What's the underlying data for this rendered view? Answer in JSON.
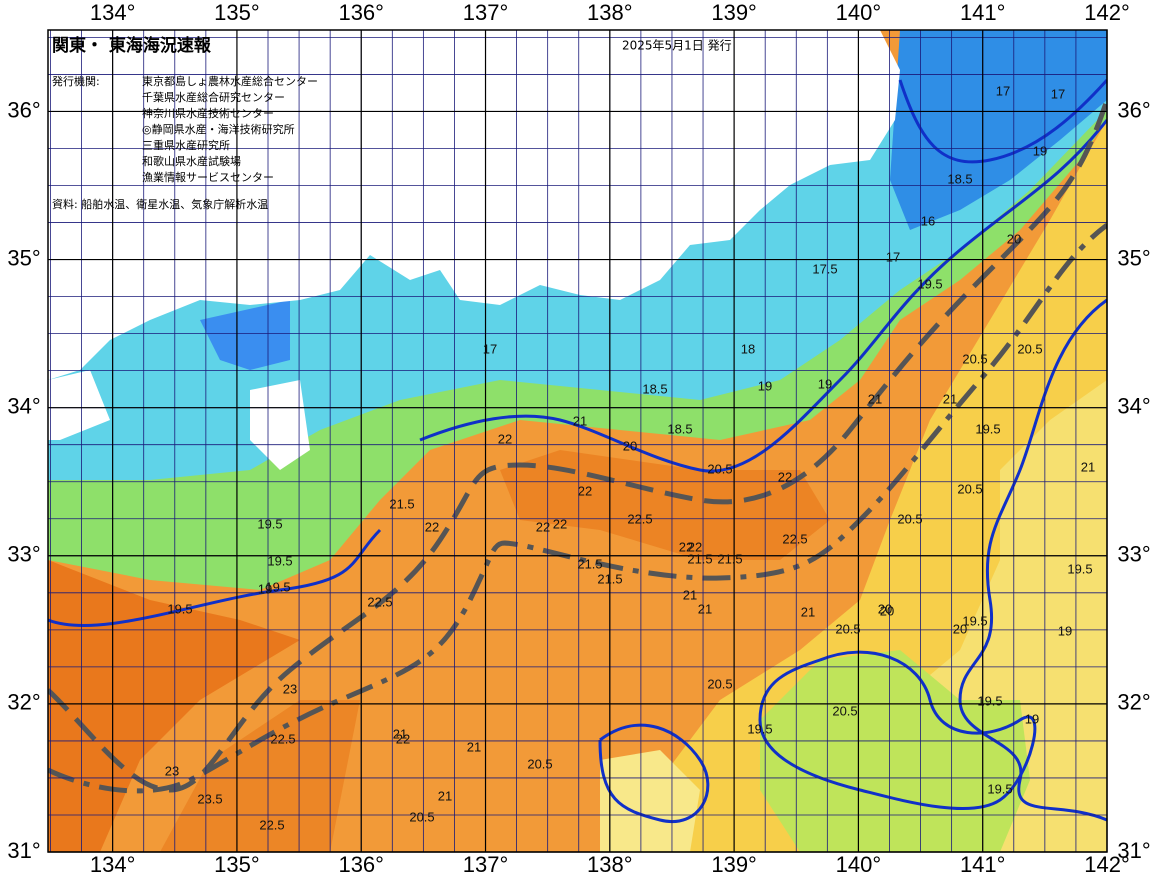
{
  "map": {
    "title": "関東・ 東海海況速報",
    "issued": "2025年5月1日 発行",
    "agencies_label": "発行機関:",
    "agencies": [
      "東京都島しょ農林水産総合センター",
      "千葉県水産総合研究センター",
      "神奈川県水産技術センター",
      "◎静岡県水産・海洋技術研究所",
      "三重県水産研究所",
      "和歌山県水産試験場",
      "漁業情報サービスセンター"
    ],
    "source": "資料: 船舶水温、衛星水温、気象庁解析水温",
    "lonlim": [
      133.48,
      142
    ],
    "latlim": [
      31,
      36.55
    ],
    "lon_ticks": [
      {
        "value": 134,
        "label": "134°"
      },
      {
        "value": 135,
        "label": "135°"
      },
      {
        "value": 136,
        "label": "136°"
      },
      {
        "value": 137,
        "label": "137°"
      },
      {
        "value": 138,
        "label": "138°"
      },
      {
        "value": 139,
        "label": "139°"
      },
      {
        "value": 140,
        "label": "140°"
      },
      {
        "value": 141,
        "label": "141°"
      },
      {
        "value": 142,
        "label": "142°"
      }
    ],
    "lat_ticks": [
      {
        "value": 31,
        "label": "31°"
      },
      {
        "value": 32,
        "label": "32°"
      },
      {
        "value": 33,
        "label": "33°"
      },
      {
        "value": 34,
        "label": "34°"
      },
      {
        "value": 35,
        "label": "35°"
      },
      {
        "value": 36,
        "label": "36°"
      }
    ],
    "contour_labels": [
      "17",
      "17",
      "19",
      "18.5",
      "16",
      "17",
      "19.5",
      "20",
      "17",
      "17.5",
      "18",
      "19",
      "18.5",
      "18.5",
      "19",
      "20.5",
      "21",
      "20",
      "21",
      "22",
      "22",
      "22",
      "22",
      "22.5",
      "22",
      "21.5",
      "21.5",
      "21",
      "21",
      "21",
      "21.5",
      "20.5",
      "21",
      "20.5",
      "19.5",
      "20.5",
      "19.5",
      "19.5",
      "19.5",
      "19.5",
      "20",
      "19",
      "19.5",
      "20",
      "20.5",
      "21.5",
      "22",
      "22.5",
      "22",
      "23",
      "23",
      "22.5",
      "22",
      "23.5",
      "22.5",
      "21",
      "21",
      "20.5",
      "21",
      "20.5",
      "19.5",
      "20.5",
      "19.5",
      "19.5",
      "20.5",
      "19.5",
      "22",
      "22.5",
      "21.5",
      "20",
      "20.5",
      "19",
      "19",
      "21"
    ]
  }
}
